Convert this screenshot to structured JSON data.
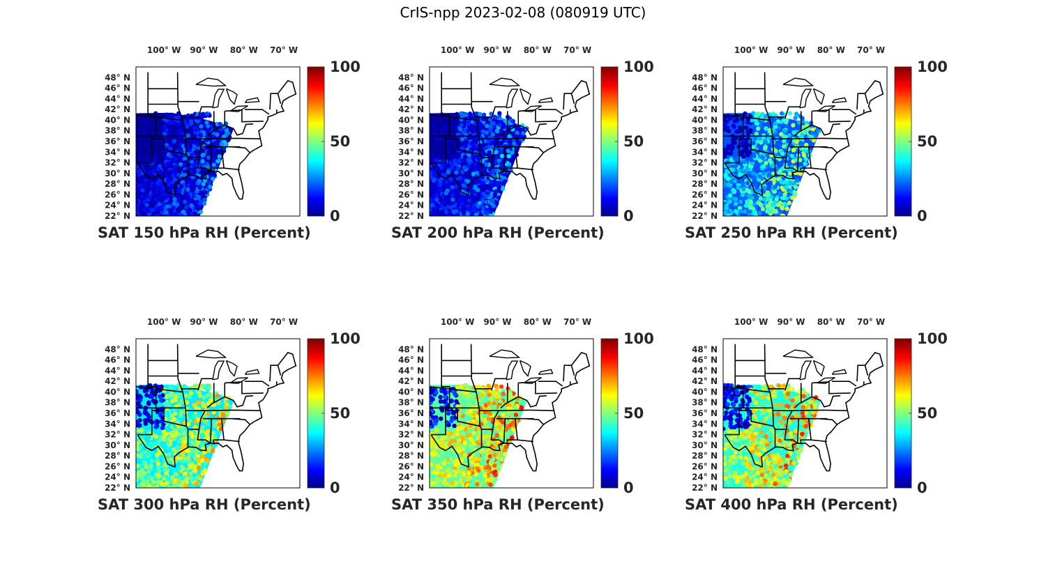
{
  "figure": {
    "title": "CrIS-npp 2023-02-08 (080919 UTC)"
  },
  "map_axes": {
    "lon_ticks": [
      "100° W",
      "90° W",
      "80° W",
      "70° W"
    ],
    "lat_ticks": [
      "48° N",
      "46° N",
      "44° N",
      "42° N",
      "40° N",
      "38° N",
      "36° N",
      "34° N",
      "32° N",
      "30° N",
      "28° N",
      "26° N",
      "24° N",
      "22° N"
    ]
  },
  "colorbar": {
    "ticks": [
      "100",
      "50",
      "0"
    ],
    "colormap": "jet",
    "stops": [
      "#00008f",
      "#0000ff",
      "#00ffff",
      "#ffff00",
      "#ff0000",
      "#800000"
    ]
  },
  "chart_data": [
    {
      "type": "heatmap",
      "title": "SAT 150 hPa RH (Percent)",
      "xlim": [
        -107,
        -66
      ],
      "ylim": [
        22,
        50
      ],
      "color_range": [
        0,
        100
      ],
      "swath_coverage": "satellite swath over south-central US",
      "typical_value": 3,
      "max_value": 40
    },
    {
      "type": "heatmap",
      "title": "SAT 200 hPa RH (Percent)",
      "xlim": [
        -107,
        -66
      ],
      "ylim": [
        22,
        50
      ],
      "color_range": [
        0,
        100
      ],
      "swath_coverage": "satellite swath over south-central US",
      "typical_value": 5,
      "max_value": 45
    },
    {
      "type": "heatmap",
      "title": "SAT 250 hPa RH (Percent)",
      "xlim": [
        -107,
        -66
      ],
      "ylim": [
        22,
        50
      ],
      "color_range": [
        0,
        100
      ],
      "swath_coverage": "satellite swath over south-central US",
      "typical_value": 20,
      "max_value": 75
    },
    {
      "type": "heatmap",
      "title": "SAT 300 hPa RH (Percent)",
      "xlim": [
        -107,
        -66
      ],
      "ylim": [
        22,
        50
      ],
      "color_range": [
        0,
        100
      ],
      "swath_coverage": "satellite swath over south-central US",
      "typical_value": 35,
      "max_value": 90
    },
    {
      "type": "heatmap",
      "title": "SAT 350 hPa RH (Percent)",
      "xlim": [
        -107,
        -66
      ],
      "ylim": [
        22,
        50
      ],
      "color_range": [
        0,
        100
      ],
      "swath_coverage": "satellite swath over south-central US",
      "typical_value": 45,
      "max_value": 100
    },
    {
      "type": "heatmap",
      "title": "SAT 400 hPa RH (Percent)",
      "xlim": [
        -107,
        -66
      ],
      "ylim": [
        22,
        50
      ],
      "color_range": [
        0,
        100
      ],
      "swath_coverage": "satellite swath over south-central US",
      "typical_value": 40,
      "max_value": 100
    }
  ]
}
